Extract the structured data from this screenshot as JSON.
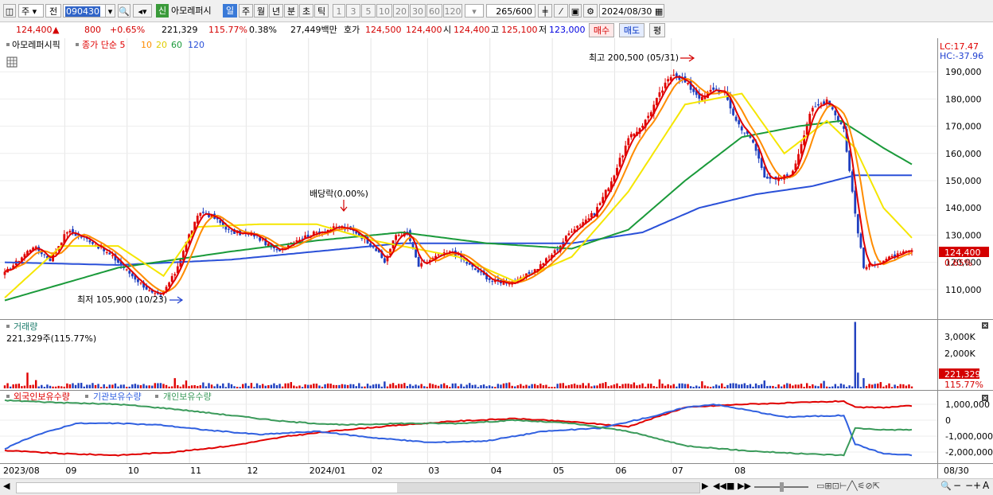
{
  "toolbar": {
    "market": "주",
    "mode": "전",
    "code": "090430",
    "sin": "신",
    "name": "아모레퍼시",
    "periods": [
      "일",
      "주",
      "월",
      "년",
      "분",
      "초",
      "틱"
    ],
    "numbers": [
      "1",
      "3",
      "5",
      "10",
      "20",
      "30",
      "60",
      "120"
    ],
    "count": "265",
    "total": "/600",
    "date": "2024/08/30"
  },
  "quote": {
    "price": "124,400",
    "arrow": "▲",
    "change": "800",
    "change_pct": "+0.65%",
    "volume": "221,329",
    "volume_ratio": "115.77%",
    "turnover": "0.38%",
    "amount": "27,449백만",
    "hoga_label": "호가",
    "ask": "124,500",
    "bid": "124,400",
    "open_label": "시",
    "open": "124,400",
    "high_label": "고",
    "high": "125,100",
    "low_label": "저",
    "low": "123,000",
    "buy_label": "매수",
    "sell_label": "매도",
    "eval_label": "평"
  },
  "colors": {
    "candle_up": "#e00000",
    "candle_down": "#1f3fbf",
    "ma5": "#e00000",
    "ma10": "#ff8c00",
    "ma20": "#f5e600",
    "ma60": "#1a9a3a",
    "ma120": "#2a50d8",
    "foreign": "#e00000",
    "institution": "#3060e0",
    "individual": "#3a9a5a"
  },
  "chart_data": [
    {
      "type": "candlestick",
      "legend": {
        "name": "아모레퍼시픽",
        "ma_label": "종가 단순",
        "ma_periods": [
          "5",
          "10",
          "20",
          "60",
          "120"
        ]
      },
      "lc": "LC:17.47",
      "hc": "HC:-37.96",
      "y_ticks": [
        "190,000",
        "180,000",
        "170,000",
        "160,000",
        "150,000",
        "140,000",
        "130,000",
        "120,000",
        "110,000"
      ],
      "ylim": [
        100000,
        200000
      ],
      "x_labels": [
        "2023/08",
        "09",
        "10",
        "11",
        "12",
        "2024/01",
        "02",
        "03",
        "04",
        "05",
        "06",
        "07",
        "08",
        "08/30"
      ],
      "annotations": {
        "high": "최고 200,500 (05/31)",
        "low": "최저 105,900 (10/23)",
        "dividend": "배당락(0.00%)"
      },
      "last_price": "124,400",
      "last_pct": "0.65%",
      "close_keypoints": [
        [
          0,
          116000
        ],
        [
          5,
          121000
        ],
        [
          10,
          126000
        ],
        [
          16,
          121000
        ],
        [
          22,
          131500
        ],
        [
          30,
          128000
        ],
        [
          38,
          122000
        ],
        [
          45,
          115000
        ],
        [
          52,
          108500
        ],
        [
          55,
          107500
        ],
        [
          60,
          116000
        ],
        [
          65,
          130000
        ],
        [
          69,
          138500
        ],
        [
          73,
          137000
        ],
        [
          80,
          131000
        ],
        [
          88,
          130000
        ],
        [
          96,
          124000
        ],
        [
          102,
          128000
        ],
        [
          110,
          131000
        ],
        [
          118,
          133000
        ],
        [
          124,
          131000
        ],
        [
          130,
          126000
        ],
        [
          134,
          120000
        ],
        [
          138,
          130000
        ],
        [
          142,
          131000
        ],
        [
          146,
          118500
        ],
        [
          152,
          122000
        ],
        [
          158,
          124000
        ],
        [
          165,
          118000
        ],
        [
          172,
          113000
        ],
        [
          180,
          112500
        ],
        [
          188,
          118000
        ],
        [
          195,
          125000
        ],
        [
          200,
          132000
        ],
        [
          208,
          138000
        ],
        [
          214,
          150000
        ],
        [
          220,
          165000
        ],
        [
          226,
          172000
        ],
        [
          232,
          183500
        ],
        [
          236,
          190000
        ],
        [
          240,
          186000
        ],
        [
          246,
          180000
        ],
        [
          250,
          184000
        ],
        [
          254,
          182000
        ],
        [
          258,
          172000
        ],
        [
          264,
          164000
        ],
        [
          268,
          152000
        ],
        [
          272,
          150000
        ],
        [
          278,
          153000
        ],
        [
          284,
          175000
        ],
        [
          290,
          180000
        ],
        [
          296,
          169000
        ],
        [
          300,
          138000
        ],
        [
          303,
          118000
        ],
        [
          308,
          120000
        ],
        [
          316,
          123000
        ],
        [
          320,
          124400
        ]
      ],
      "ma_keypoints": {
        "ma20": [
          [
            0,
            107000
          ],
          [
            20,
            126000
          ],
          [
            40,
            126000
          ],
          [
            56,
            115000
          ],
          [
            68,
            133000
          ],
          [
            90,
            134000
          ],
          [
            110,
            134000
          ],
          [
            130,
            128000
          ],
          [
            160,
            122000
          ],
          [
            180,
            113000
          ],
          [
            200,
            122000
          ],
          [
            220,
            146000
          ],
          [
            240,
            178000
          ],
          [
            260,
            182000
          ],
          [
            275,
            160000
          ],
          [
            290,
            172000
          ],
          [
            300,
            162000
          ],
          [
            310,
            140000
          ],
          [
            320,
            129000
          ]
        ],
        "ma60": [
          [
            0,
            106000
          ],
          [
            40,
            118000
          ],
          [
            80,
            124000
          ],
          [
            110,
            128000
          ],
          [
            140,
            131000
          ],
          [
            170,
            127000
          ],
          [
            200,
            125000
          ],
          [
            220,
            132000
          ],
          [
            240,
            150000
          ],
          [
            260,
            166000
          ],
          [
            280,
            170000
          ],
          [
            295,
            172000
          ],
          [
            310,
            162000
          ],
          [
            320,
            156000
          ]
        ],
        "ma120": [
          [
            0,
            120000
          ],
          [
            40,
            119000
          ],
          [
            80,
            121000
          ],
          [
            110,
            124000
          ],
          [
            140,
            127000
          ],
          [
            170,
            127000
          ],
          [
            200,
            127000
          ],
          [
            225,
            131000
          ],
          [
            245,
            140000
          ],
          [
            265,
            145000
          ],
          [
            285,
            148000
          ],
          [
            300,
            152000
          ],
          [
            320,
            152000
          ]
        ]
      }
    },
    {
      "type": "bar",
      "title": "거래량",
      "summary": "221,329주(115.77%)",
      "y_ticks": [
        "3,000K",
        "2,000K"
      ],
      "ylim": [
        0,
        3400000
      ],
      "last_value": "221,329",
      "last_pct": "115.77%",
      "base_volume": 230000,
      "spikes": [
        [
          8,
          800000
        ],
        [
          11,
          420000
        ],
        [
          27,
          280000
        ],
        [
          60,
          520000
        ],
        [
          64,
          400000
        ],
        [
          70,
          300000
        ],
        [
          101,
          320000
        ],
        [
          134,
          350000
        ],
        [
          150,
          260000
        ],
        [
          178,
          300000
        ],
        [
          196,
          260000
        ],
        [
          212,
          320000
        ],
        [
          222,
          300000
        ],
        [
          231,
          460000
        ],
        [
          246,
          360000
        ],
        [
          268,
          400000
        ],
        [
          289,
          380000
        ],
        [
          300,
          3380000
        ],
        [
          301,
          800000
        ],
        [
          303,
          520000
        ],
        [
          309,
          320000
        ]
      ]
    },
    {
      "type": "line",
      "legend": [
        "외국인보유수량",
        "기관보유수량",
        "개인보유수량"
      ],
      "y_ticks": [
        "1,000,000",
        "0",
        "-1,000,000",
        "-2,000,000"
      ],
      "ylim": [
        -2600000,
        1600000
      ],
      "series": [
        {
          "name": "외국인보유수량",
          "values": [
            [
              0,
              -1900000
            ],
            [
              20,
              -2100000
            ],
            [
              40,
              -2200000
            ],
            [
              60,
              -2000000
            ],
            [
              80,
              -1600000
            ],
            [
              100,
              -1000000
            ],
            [
              120,
              -600000
            ],
            [
              140,
              -300000
            ],
            [
              160,
              -50000
            ],
            [
              180,
              100000
            ],
            [
              200,
              -100000
            ],
            [
              220,
              -400000
            ],
            [
              240,
              800000
            ],
            [
              260,
              1000000
            ],
            [
              280,
              1100000
            ],
            [
              296,
              1200000
            ],
            [
              300,
              800000
            ],
            [
              310,
              800000
            ],
            [
              320,
              900000
            ]
          ]
        },
        {
          "name": "기관보유수량",
          "values": [
            [
              0,
              -1800000
            ],
            [
              10,
              -1000000
            ],
            [
              25,
              -200000
            ],
            [
              40,
              -200000
            ],
            [
              55,
              -300000
            ],
            [
              70,
              -600000
            ],
            [
              90,
              -900000
            ],
            [
              110,
              -700000
            ],
            [
              130,
              -1100000
            ],
            [
              150,
              -1400000
            ],
            [
              170,
              -1300000
            ],
            [
              190,
              -700000
            ],
            [
              210,
              -500000
            ],
            [
              230,
              300000
            ],
            [
              240,
              800000
            ],
            [
              250,
              1000000
            ],
            [
              260,
              700000
            ],
            [
              275,
              200000
            ],
            [
              296,
              300000
            ],
            [
              300,
              -1500000
            ],
            [
              310,
              -2100000
            ],
            [
              320,
              -2200000
            ]
          ]
        },
        {
          "name": "개인보유수량",
          "values": [
            [
              0,
              1250000
            ],
            [
              20,
              1100000
            ],
            [
              40,
              1000000
            ],
            [
              60,
              700000
            ],
            [
              80,
              300000
            ],
            [
              100,
              -100000
            ],
            [
              120,
              -300000
            ],
            [
              140,
              -200000
            ],
            [
              160,
              -200000
            ],
            [
              180,
              0
            ],
            [
              200,
              -200000
            ],
            [
              220,
              -700000
            ],
            [
              240,
              -1600000
            ],
            [
              260,
              -1900000
            ],
            [
              280,
              -2100000
            ],
            [
              296,
              -2200000
            ],
            [
              300,
              -500000
            ],
            [
              310,
              -600000
            ],
            [
              320,
              -600000
            ]
          ]
        }
      ]
    }
  ]
}
